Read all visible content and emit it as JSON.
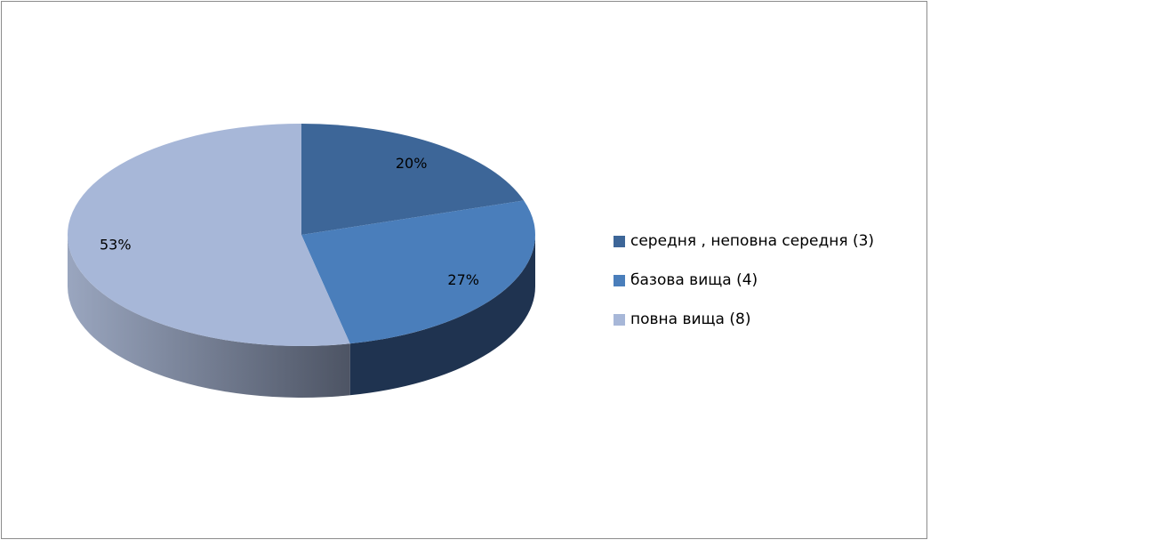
{
  "chart_data": {
    "type": "pie",
    "style": "3d",
    "start_angle": "12 o'clock",
    "direction": "clockwise",
    "slices": [
      {
        "label": "середня , неповна середня (3)",
        "value": 3,
        "percent_label": "20%",
        "color": "#3D6698",
        "side_color": "#2a4366"
      },
      {
        "label": "базова вища (4)",
        "value": 4,
        "percent_label": "27%",
        "color": "#4A7EBB",
        "side_color": "#1f3350"
      },
      {
        "label": "повна вища (8)",
        "value": 8,
        "percent_label": "53%",
        "color": "#A7B7D8",
        "side_color": "#9aa6bf",
        "side_color_dark": "#4d5464"
      }
    ],
    "legend_placement": "right"
  }
}
